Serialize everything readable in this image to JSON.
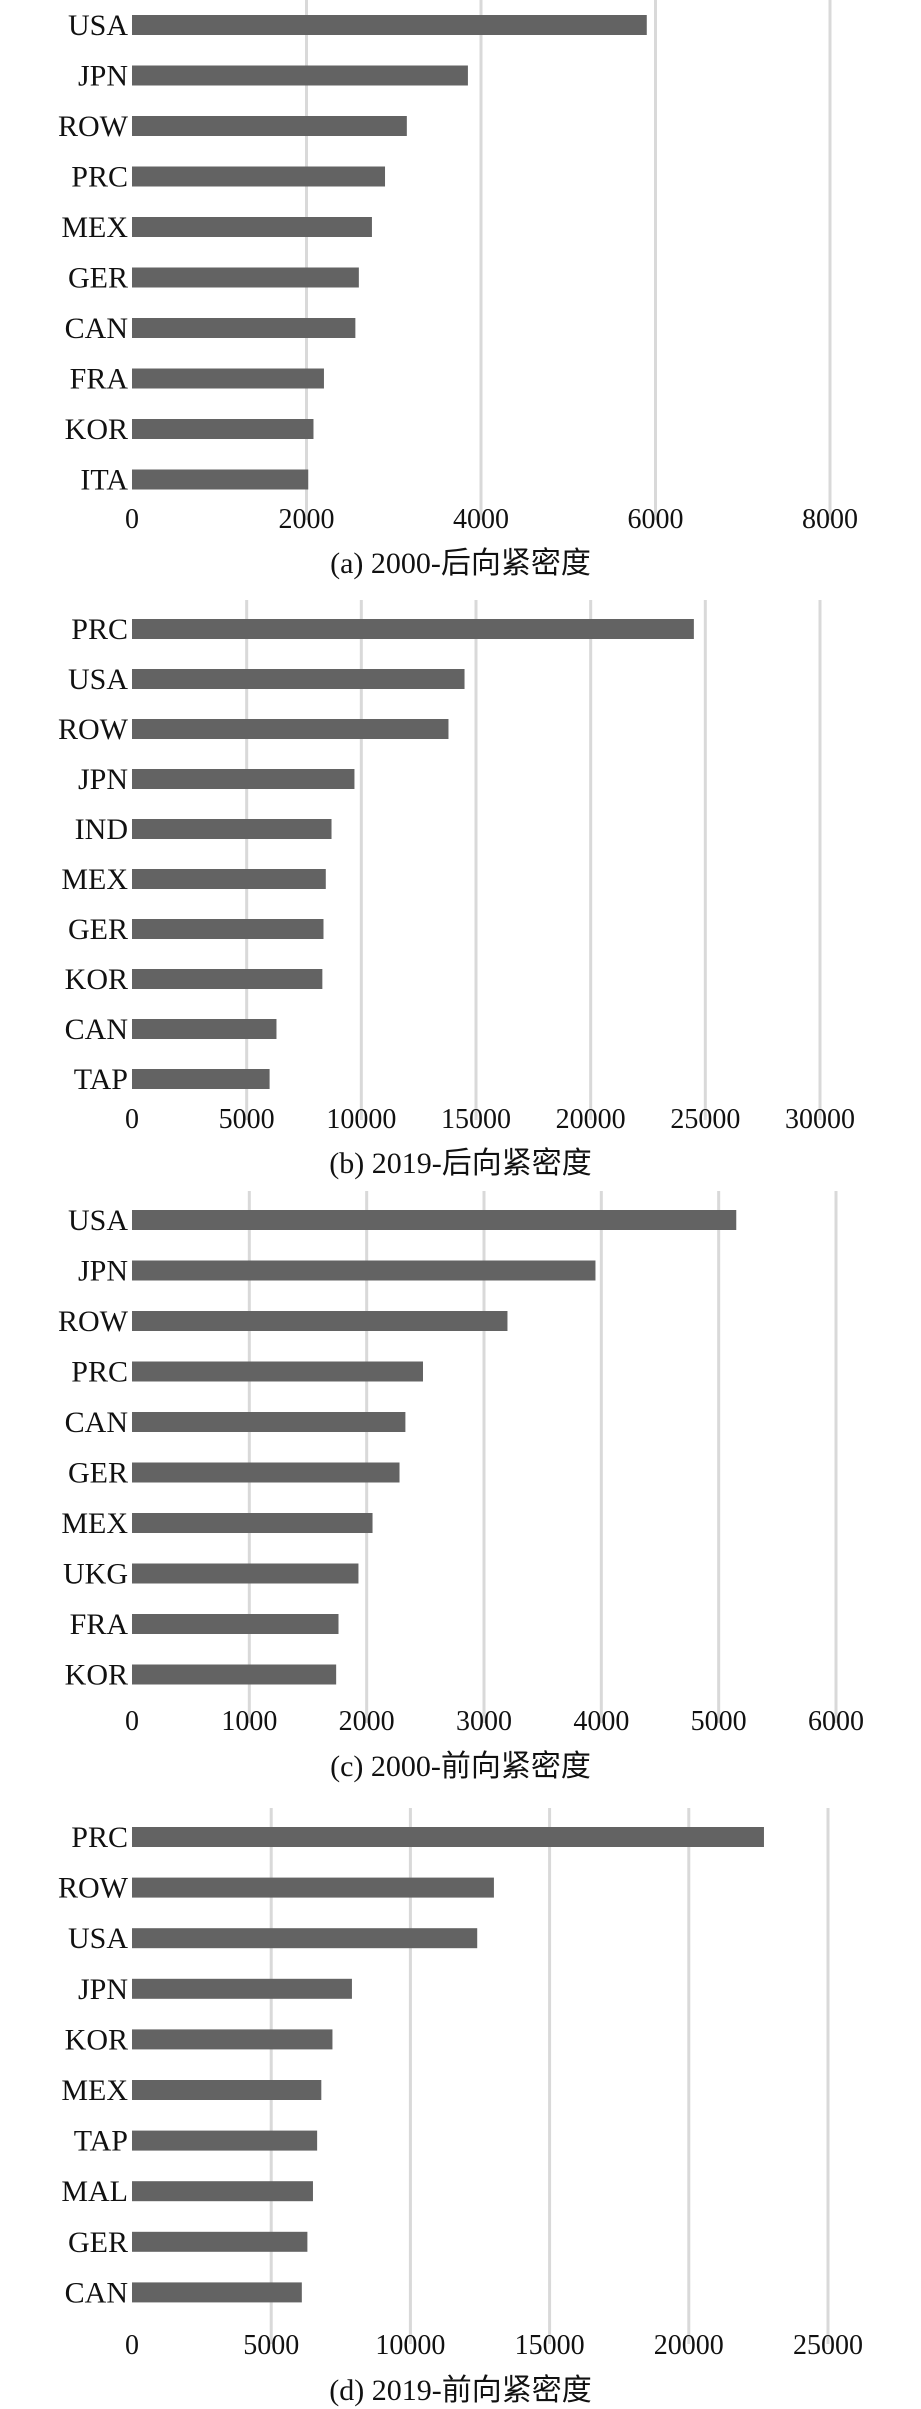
{
  "chart_data": [
    {
      "type": "bar",
      "orientation": "horizontal",
      "title": "(a) 2000-后向紧密度",
      "categories": [
        "USA",
        "JPN",
        "ROW",
        "PRC",
        "MEX",
        "GER",
        "CAN",
        "FRA",
        "KOR",
        "ITA"
      ],
      "values": [
        5900,
        3850,
        3150,
        2900,
        2750,
        2600,
        2560,
        2200,
        2080,
        2020
      ],
      "xlim": [
        0,
        8000
      ],
      "xticks": [
        0,
        2000,
        4000,
        6000,
        8000
      ],
      "xtick_labels": [
        "0",
        "2000",
        "4000",
        "6000",
        "8000"
      ],
      "grid": true,
      "bar_color": "#636363"
    },
    {
      "type": "bar",
      "orientation": "horizontal",
      "title": "(b) 2019-后向紧密度",
      "categories": [
        "PRC",
        "USA",
        "ROW",
        "JPN",
        "IND",
        "MEX",
        "GER",
        "KOR",
        "CAN",
        "TAP"
      ],
      "values": [
        24500,
        14500,
        13800,
        9700,
        8700,
        8450,
        8350,
        8300,
        6300,
        6000
      ],
      "xlim": [
        0,
        30000
      ],
      "xticks": [
        0,
        5000,
        10000,
        15000,
        20000,
        25000,
        30000
      ],
      "xtick_labels": [
        "0",
        "5000",
        "10000",
        "15000",
        "20000",
        "25000",
        "30000"
      ],
      "grid": true,
      "bar_color": "#636363"
    },
    {
      "type": "bar",
      "orientation": "horizontal",
      "title": "(c) 2000-前向紧密度",
      "categories": [
        "USA",
        "JPN",
        "ROW",
        "PRC",
        "CAN",
        "GER",
        "MEX",
        "UKG",
        "FRA",
        "KOR"
      ],
      "values": [
        5150,
        3950,
        3200,
        2480,
        2330,
        2280,
        2050,
        1930,
        1760,
        1740
      ],
      "xlim": [
        0,
        6000
      ],
      "xticks": [
        0,
        1000,
        2000,
        3000,
        4000,
        5000,
        6000
      ],
      "xtick_labels": [
        "0",
        "1000",
        "2000",
        "3000",
        "4000",
        "5000",
        "6000"
      ],
      "grid": true,
      "bar_color": "#636363"
    },
    {
      "type": "bar",
      "orientation": "horizontal",
      "title": "(d) 2019-前向紧密度",
      "categories": [
        "PRC",
        "ROW",
        "USA",
        "JPN",
        "KOR",
        "MEX",
        "TAP",
        "MAL",
        "GER",
        "CAN"
      ],
      "values": [
        22700,
        13000,
        12400,
        7900,
        7200,
        6800,
        6650,
        6500,
        6300,
        6100
      ],
      "xlim": [
        0,
        25000
      ],
      "xticks": [
        0,
        5000,
        10000,
        15000,
        20000,
        25000
      ],
      "xtick_labels": [
        "0",
        "5000",
        "10000",
        "15000",
        "20000",
        "25000"
      ],
      "grid": true,
      "bar_color": "#636363"
    }
  ]
}
